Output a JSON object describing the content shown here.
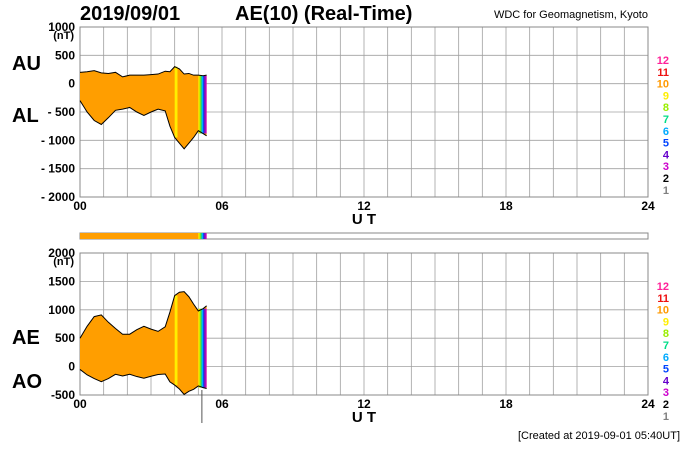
{
  "header": {
    "date": "2019/09/01",
    "title": "AE(10) (Real-Time)",
    "source": "WDC for Geomagnetism, Kyoto"
  },
  "footer": {
    "created": "[Created at 2019-09-01 05:40UT]"
  },
  "colors": {
    "fill": "#ff9e00",
    "grid": "#a0a0a0",
    "bar_fill": "#ff9e00",
    "hour_colors": [
      "#bdbdbd",
      "#808080",
      "#000000",
      "#cc00cc",
      "#6600cc",
      "#0044ff",
      "#00aaff",
      "#00dd88",
      "#99ee00",
      "#ffee00",
      "#ff9900",
      "#ee1111",
      "#ff2299"
    ]
  },
  "chart_data": [
    {
      "type": "area",
      "name": "AU/AL panel",
      "side_labels": [
        "AU",
        "AL"
      ],
      "ylabel": "(nT)",
      "xlabel": "U T",
      "ylim": [
        -2000,
        1000
      ],
      "y_ticks": [
        "1000",
        "500",
        "0",
        "- 500",
        "- 1000",
        "- 1500",
        "- 2000"
      ],
      "x_ticks": [
        "00",
        "06",
        "12",
        "18",
        "24"
      ],
      "xlim": [
        0,
        24
      ],
      "grid": true,
      "legend_station_counts": [
        "12",
        "11",
        "10",
        "9",
        "8",
        "7",
        "6",
        "5",
        "4",
        "3",
        "2",
        "1"
      ],
      "x": [
        0,
        0.3,
        0.6,
        0.9,
        1.2,
        1.5,
        1.8,
        2.1,
        2.4,
        2.7,
        3.0,
        3.3,
        3.6,
        3.8,
        4.0,
        4.2,
        4.4,
        4.6,
        4.8,
        5.0,
        5.2,
        5.35
      ],
      "series": [
        {
          "name": "AU",
          "values": [
            200,
            210,
            230,
            190,
            180,
            200,
            120,
            150,
            150,
            150,
            160,
            170,
            220,
            210,
            300,
            260,
            170,
            180,
            150,
            150,
            140,
            150
          ]
        },
        {
          "name": "AL",
          "values": [
            -300,
            -500,
            -650,
            -720,
            -600,
            -470,
            -450,
            -420,
            -500,
            -560,
            -500,
            -450,
            -480,
            -750,
            -950,
            -1050,
            -1150,
            -1050,
            -950,
            -830,
            -880,
            -920
          ]
        }
      ]
    },
    {
      "type": "area",
      "name": "AE/AO panel",
      "side_labels": [
        "AE",
        "AO"
      ],
      "ylabel": "(nT)",
      "xlabel": "U T",
      "ylim": [
        -500,
        2000
      ],
      "y_ticks": [
        "2000",
        "1500",
        "1000",
        "500",
        "0",
        "-500"
      ],
      "x_ticks": [
        "00",
        "06",
        "12",
        "18",
        "24"
      ],
      "xlim": [
        0,
        24
      ],
      "grid": true,
      "legend_station_counts": [
        "12",
        "11",
        "10",
        "9",
        "8",
        "7",
        "6",
        "5",
        "4",
        "3",
        "2",
        "1"
      ],
      "x": [
        0,
        0.3,
        0.6,
        0.9,
        1.2,
        1.5,
        1.8,
        2.1,
        2.4,
        2.7,
        3.0,
        3.3,
        3.6,
        3.8,
        4.0,
        4.2,
        4.4,
        4.6,
        4.8,
        5.0,
        5.2,
        5.35
      ],
      "series": [
        {
          "name": "AE",
          "values": [
            500,
            710,
            880,
            910,
            780,
            670,
            570,
            570,
            650,
            710,
            660,
            620,
            700,
            960,
            1250,
            1310,
            1320,
            1230,
            1100,
            980,
            1020,
            1070
          ]
        },
        {
          "name": "AO",
          "values": [
            -50,
            -145,
            -210,
            -265,
            -210,
            -135,
            -165,
            -135,
            -175,
            -205,
            -170,
            -140,
            -130,
            -270,
            -325,
            -395,
            -490,
            -435,
            -400,
            -340,
            -370,
            -385
          ]
        }
      ]
    }
  ]
}
